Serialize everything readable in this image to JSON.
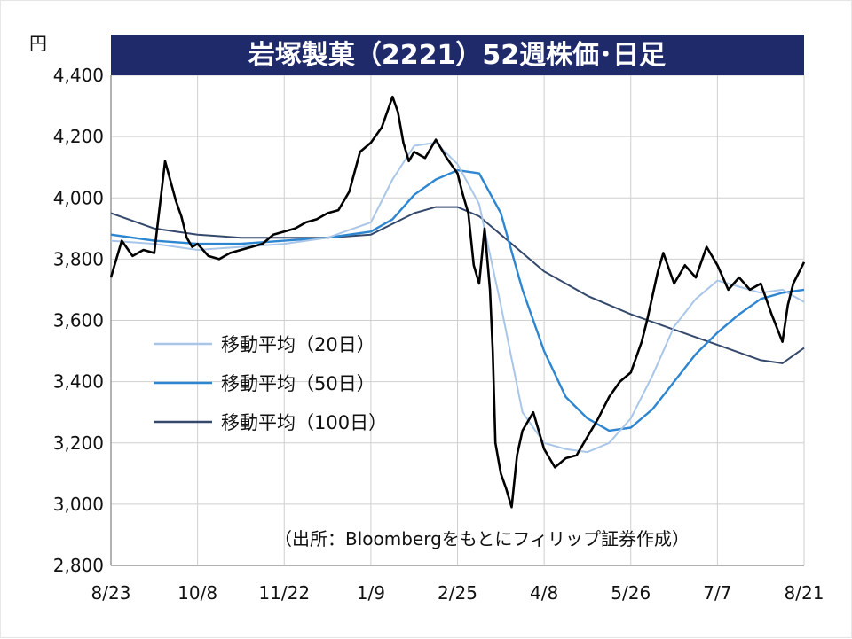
{
  "chart_data": {
    "type": "line",
    "title": "岩塚製菓（2221）52週株価･日足",
    "unit_label": "円",
    "source_note": "（出所：Bloombergをもとにフィリップ証券作成）",
    "ylim": [
      2800,
      4400
    ],
    "y_ticks": [
      2800,
      3000,
      3200,
      3400,
      3600,
      3800,
      4000,
      4200,
      4400
    ],
    "y_tick_labels": [
      "2,800",
      "3,000",
      "3,200",
      "3,400",
      "3,600",
      "3,800",
      "4,000",
      "4,200",
      "4,400"
    ],
    "x_tick_labels": [
      "8/23",
      "10/8",
      "11/22",
      "1/9",
      "2/25",
      "4/8",
      "5/26",
      "7/7",
      "8/21"
    ],
    "x_tick_positions": [
      0,
      32,
      64,
      96,
      128,
      160,
      192,
      224,
      256
    ],
    "xlim": [
      0,
      256
    ],
    "grid": true,
    "legend_position": "left-middle",
    "colors": {
      "title_bg": "#1f2a6b",
      "price": "#000000",
      "ma20": "#a9c6e8",
      "ma50": "#2e86d1",
      "ma100": "#34496b",
      "grid": "#cfcfcf",
      "axis": "#999999"
    },
    "series": [
      {
        "name": "価格",
        "style": "price",
        "x": [
          0,
          4,
          8,
          12,
          16,
          20,
          24,
          26,
          28,
          30,
          32,
          36,
          40,
          44,
          48,
          52,
          56,
          60,
          64,
          68,
          72,
          76,
          80,
          84,
          88,
          92,
          96,
          100,
          104,
          106,
          108,
          110,
          112,
          116,
          120,
          124,
          128,
          130,
          132,
          134,
          136,
          138,
          140,
          141,
          142,
          144,
          146,
          148,
          150,
          152,
          156,
          160,
          164,
          168,
          172,
          176,
          180,
          184,
          188,
          192,
          194,
          196,
          198,
          200,
          202,
          204,
          208,
          212,
          216,
          220,
          224,
          228,
          232,
          236,
          240,
          244,
          248,
          250,
          252,
          256
        ],
        "y": [
          3740,
          3860,
          3810,
          3830,
          3820,
          4120,
          3990,
          3940,
          3870,
          3840,
          3850,
          3810,
          3800,
          3820,
          3830,
          3840,
          3850,
          3880,
          3890,
          3900,
          3920,
          3930,
          3950,
          3960,
          4020,
          4150,
          4180,
          4230,
          4330,
          4280,
          4180,
          4120,
          4150,
          4130,
          4190,
          4130,
          4080,
          4010,
          3950,
          3780,
          3720,
          3900,
          3700,
          3500,
          3200,
          3100,
          3050,
          2990,
          3160,
          3240,
          3300,
          3180,
          3120,
          3150,
          3160,
          3220,
          3280,
          3350,
          3400,
          3430,
          3480,
          3530,
          3600,
          3680,
          3760,
          3820,
          3720,
          3780,
          3740,
          3840,
          3780,
          3700,
          3740,
          3700,
          3720,
          3620,
          3530,
          3650,
          3720,
          3790
        ]
      },
      {
        "name": "移動平均（20日）",
        "style": "ma20",
        "x": [
          0,
          16,
          32,
          48,
          64,
          80,
          96,
          104,
          112,
          120,
          128,
          136,
          144,
          152,
          160,
          168,
          176,
          184,
          192,
          200,
          208,
          216,
          224,
          232,
          240,
          248,
          256
        ],
        "y": [
          3860,
          3850,
          3830,
          3840,
          3850,
          3870,
          3920,
          4060,
          4170,
          4180,
          4110,
          3980,
          3650,
          3300,
          3200,
          3180,
          3170,
          3200,
          3280,
          3420,
          3580,
          3670,
          3730,
          3710,
          3690,
          3700,
          3660
        ]
      },
      {
        "name": "移動平均（50日）",
        "style": "ma50",
        "x": [
          0,
          16,
          32,
          48,
          64,
          80,
          96,
          104,
          112,
          120,
          128,
          136,
          144,
          152,
          160,
          168,
          176,
          184,
          192,
          200,
          208,
          216,
          224,
          232,
          240,
          248,
          256
        ],
        "y": [
          3880,
          3860,
          3850,
          3850,
          3860,
          3870,
          3890,
          3930,
          4010,
          4060,
          4090,
          4080,
          3950,
          3700,
          3500,
          3350,
          3280,
          3240,
          3250,
          3310,
          3400,
          3490,
          3560,
          3620,
          3670,
          3690,
          3700
        ]
      },
      {
        "name": "移動平均（100日）",
        "style": "ma100",
        "x": [
          0,
          16,
          32,
          48,
          64,
          80,
          96,
          112,
          120,
          128,
          136,
          144,
          160,
          176,
          192,
          208,
          224,
          240,
          248,
          256
        ],
        "y": [
          3950,
          3900,
          3880,
          3870,
          3870,
          3870,
          3880,
          3950,
          3970,
          3970,
          3940,
          3880,
          3760,
          3680,
          3620,
          3570,
          3520,
          3470,
          3460,
          3510
        ]
      }
    ]
  }
}
